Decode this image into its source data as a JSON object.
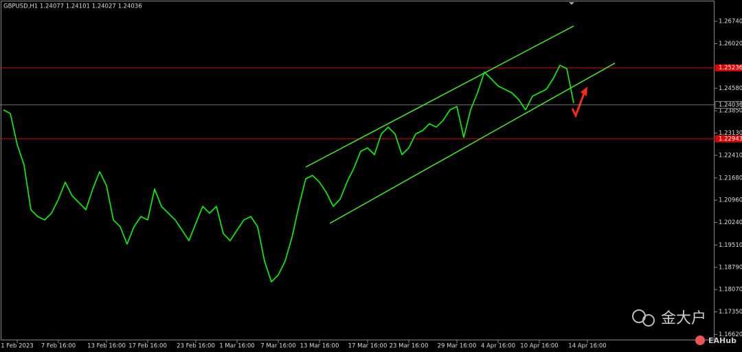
{
  "chart_data": {
    "type": "line",
    "title": "GBPUSD,H1  1.24077 1.24101 1.24027 1.24036",
    "categories": [
      null,
      null,
      "1 Feb 2023",
      null,
      null,
      null,
      null,
      null,
      "7 Feb 16:00",
      null,
      null,
      null,
      null,
      null,
      null,
      "13 Feb 16:00",
      null,
      null,
      null,
      null,
      null,
      "17 Feb 16:00",
      null,
      null,
      null,
      null,
      null,
      null,
      "23 Feb 16:00",
      null,
      null,
      null,
      null,
      null,
      "1 Mar 16:00",
      null,
      null,
      null,
      null,
      null,
      "7 Mar 16:00",
      null,
      null,
      null,
      null,
      null,
      "13 Mar 16:00",
      null,
      null,
      null,
      null,
      null,
      null,
      "17 Mar 16:00",
      null,
      null,
      null,
      null,
      null,
      "23 Mar 16:00",
      null,
      null,
      null,
      null,
      null,
      null,
      "29 Mar 16:00",
      null,
      null,
      null,
      null,
      null,
      "4 Apr 16:00",
      null,
      null,
      null,
      null,
      null,
      "10 Apr 16:00",
      null,
      null,
      null,
      null,
      null,
      null,
      "14 Apr 16:00",
      null,
      null,
      null,
      null,
      null,
      null,
      null,
      null,
      null,
      null,
      null,
      null,
      null,
      null,
      null,
      null,
      null,
      null
    ],
    "series": [
      {
        "name": "GBPUSD",
        "color": "#00ff00",
        "values": [
          1.2388,
          1.2376,
          1.2276,
          1.221,
          1.2065,
          1.2043,
          1.2032,
          1.2054,
          1.2099,
          1.2154,
          1.211,
          1.2088,
          1.2065,
          1.2132,
          1.2188,
          1.2143,
          1.2032,
          1.201,
          1.1954,
          1.201,
          1.2043,
          1.2032,
          1.2132,
          1.2076,
          1.2054,
          1.2032,
          1.1999,
          1.1965,
          1.2021,
          1.2076,
          1.2054,
          1.2076,
          1.1988,
          1.1965,
          1.1999,
          1.2032,
          1.2043,
          1.201,
          1.1899,
          1.1832,
          1.1854,
          1.1899,
          1.1976,
          1.2076,
          1.2165,
          1.2176,
          1.2154,
          1.2121,
          1.2076,
          1.2099,
          1.2154,
          1.2199,
          1.2254,
          1.2265,
          1.2243,
          1.231,
          1.2332,
          1.231,
          1.2243,
          1.2265,
          1.231,
          1.2321,
          1.2343,
          1.2332,
          1.2354,
          1.2388,
          1.2399,
          1.2299,
          1.2388,
          1.2443,
          1.251,
          1.2488,
          1.2465,
          1.2454,
          1.2443,
          1.2421,
          1.2388,
          1.2432,
          1.2443,
          1.2454,
          1.2488,
          1.2532,
          1.2521,
          1.241,
          null,
          null,
          null,
          null,
          null,
          null,
          null,
          null,
          null,
          null,
          null,
          null,
          null,
          null,
          null,
          null,
          null,
          null,
          null,
          null
        ]
      }
    ],
    "ylim": [
      1.1643,
      1.2743
    ],
    "yticks": [
      {
        "value": 1.2674,
        "label": "1.26740"
      },
      {
        "value": 1.2602,
        "label": "1.26020"
      },
      {
        "value": 1.2458,
        "label": "1.24580"
      },
      {
        "value": 1.2385,
        "label": "1.23850"
      },
      {
        "value": 1.2313,
        "label": "1.23130"
      },
      {
        "value": 1.2241,
        "label": "1.22410"
      },
      {
        "value": 1.2168,
        "label": "1.21680"
      },
      {
        "value": 1.2096,
        "label": "1.20960"
      },
      {
        "value": 1.2024,
        "label": "1.20240"
      },
      {
        "value": 1.1951,
        "label": "1.19510"
      },
      {
        "value": 1.1879,
        "label": "1.18790"
      },
      {
        "value": 1.1807,
        "label": "1.18070"
      },
      {
        "value": 1.1735,
        "label": "1.17350"
      },
      {
        "value": 1.1662,
        "label": "1.16620"
      }
    ],
    "levels": [
      {
        "value": 1.25236,
        "color": "#e00000"
      },
      {
        "value": 1.22943,
        "color": "#e00000"
      }
    ],
    "last_price": 1.24036,
    "trend_lines": [
      {
        "x": [
          44,
          83
        ],
        "y": [
          1.2203,
          1.2659
        ],
        "color": "#44ee22"
      },
      {
        "x": [
          47.5,
          89
        ],
        "y": [
          1.2021,
          1.2539
        ],
        "color": "#44ee22"
      }
    ],
    "watermark": "金大户",
    "badge": "EAHub"
  }
}
